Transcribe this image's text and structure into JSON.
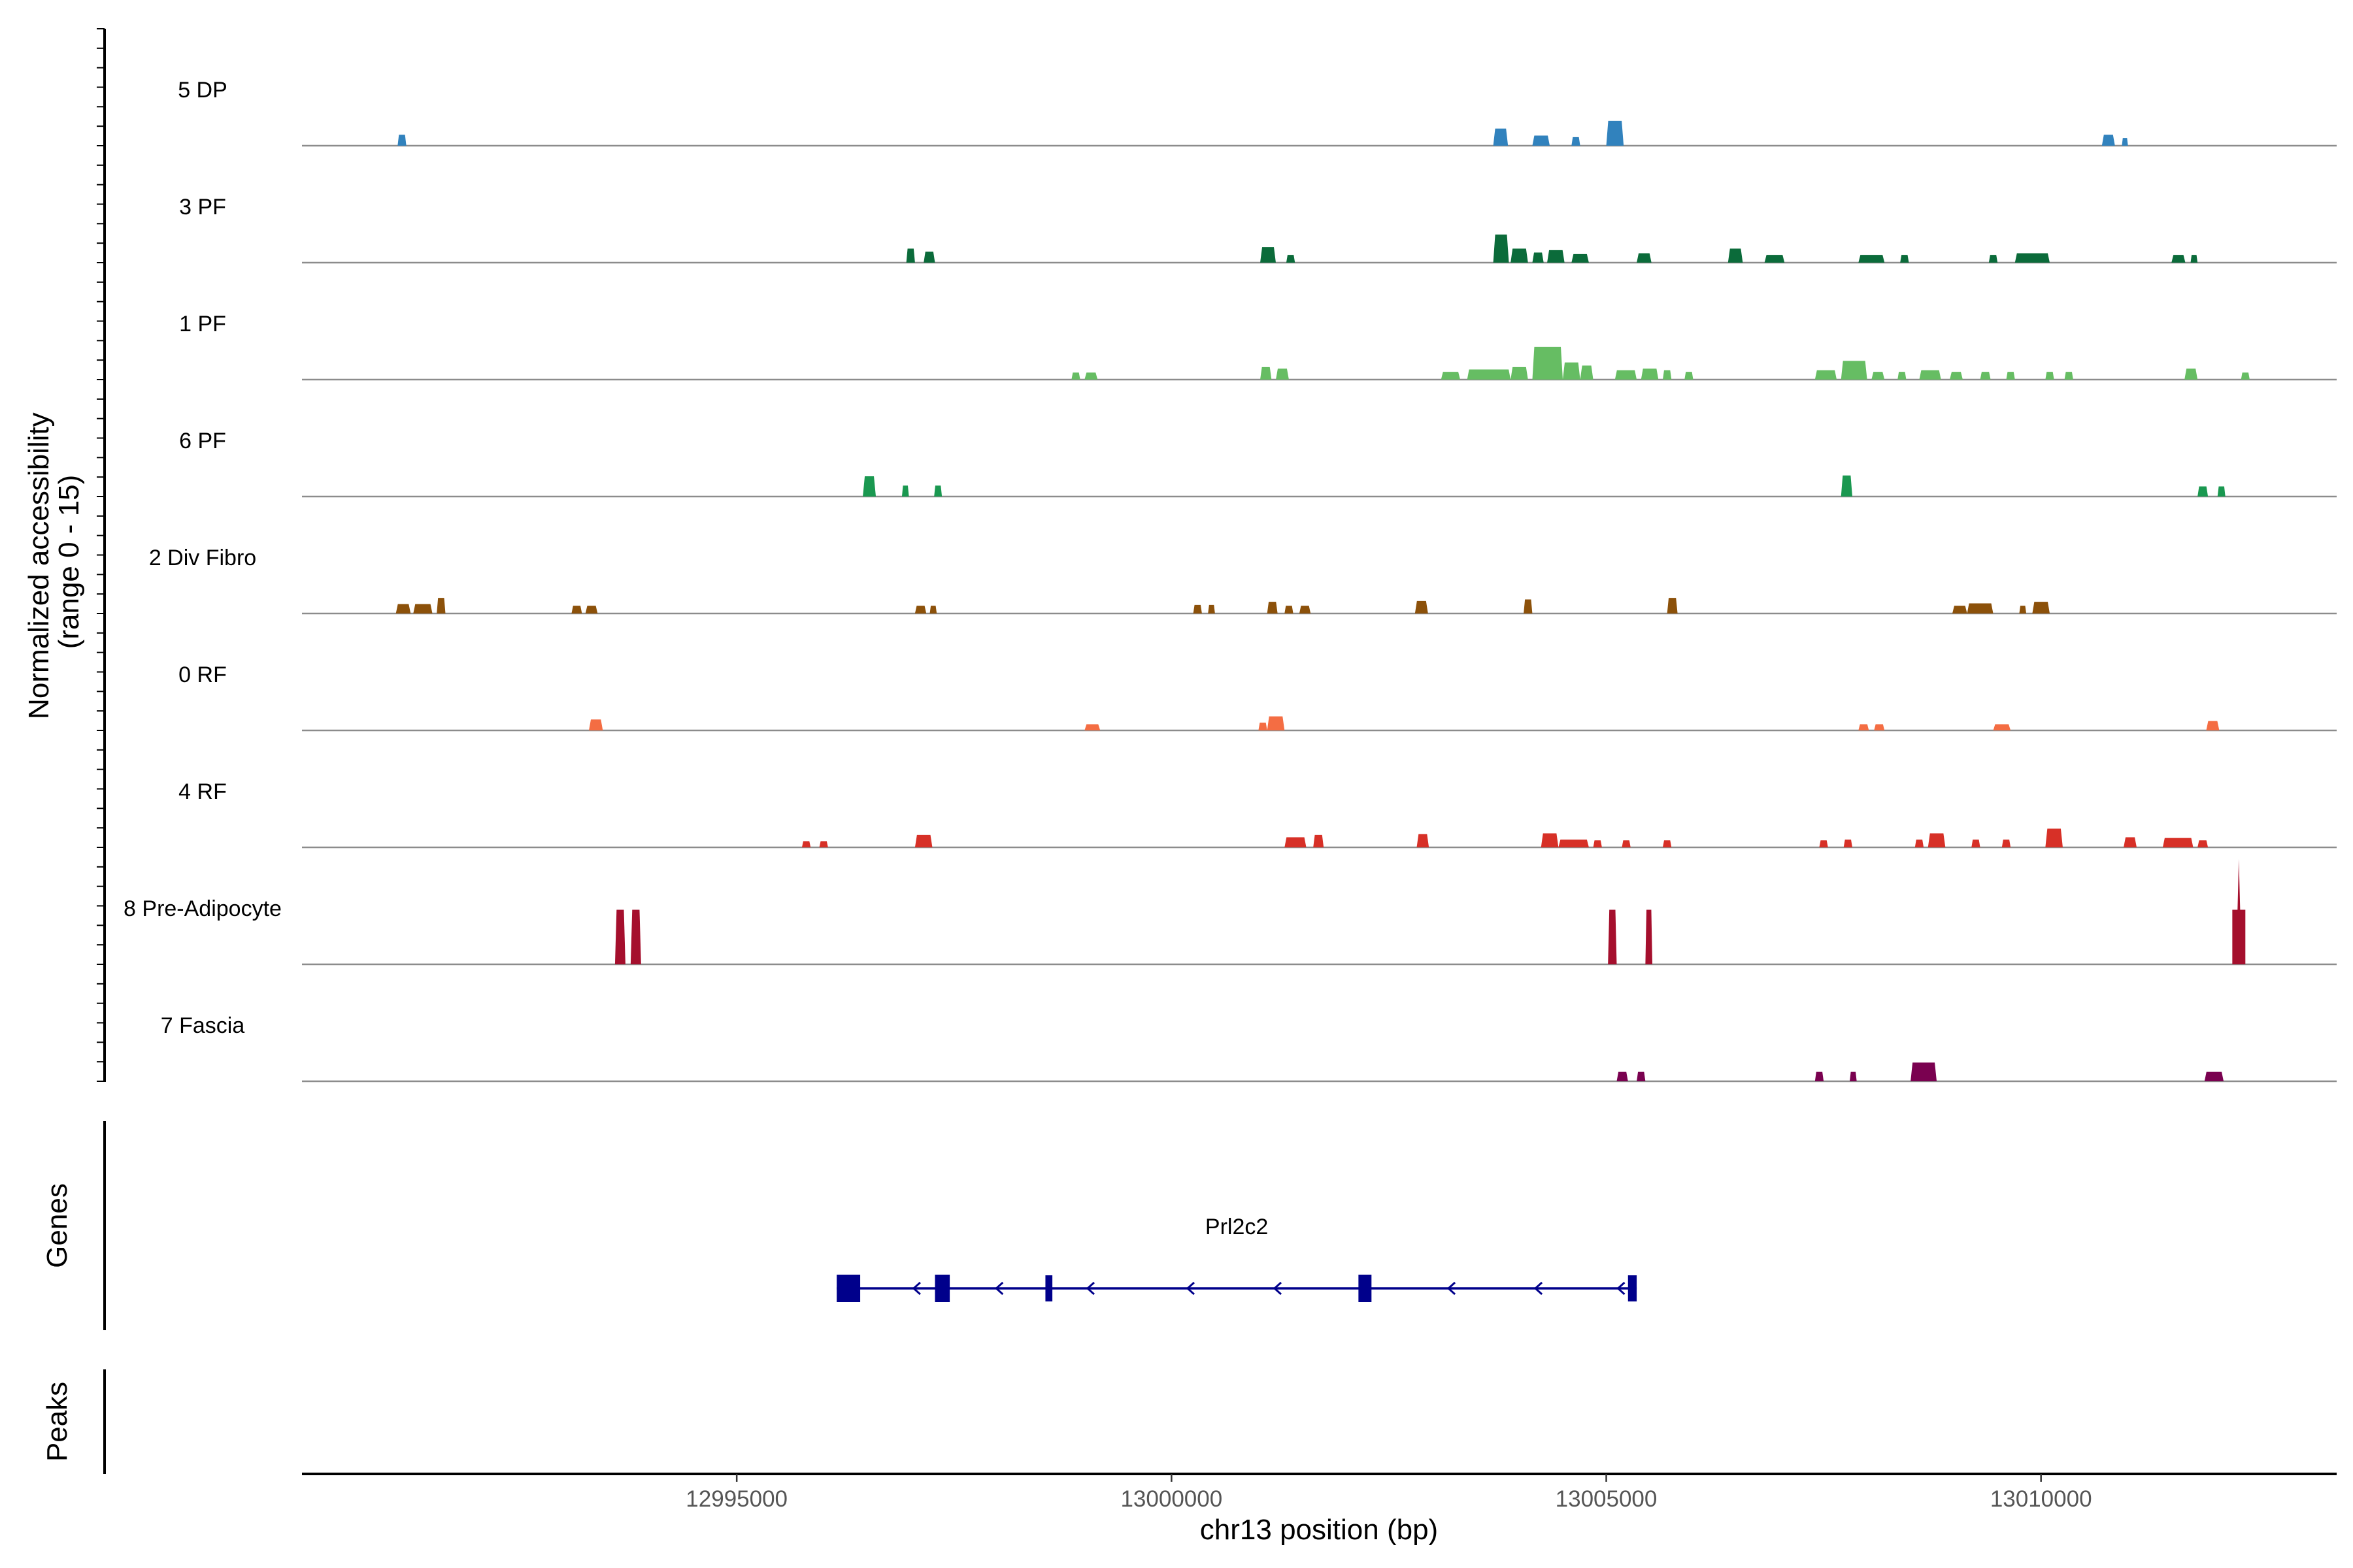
{
  "chart_data": {
    "type": "area",
    "subtype": "genome-coverage-tracks",
    "region": {
      "chromosome": "chr13",
      "start": 12990000,
      "end": 13013400
    },
    "ylabel_line1": "Normalized accessibility",
    "ylabel_line2": "(range 0 - 15)",
    "xlabel": "chr13 position (bp)",
    "xticks": [
      12995000,
      13000000,
      13005000,
      13010000
    ],
    "xtick_labels": [
      "12995000",
      "13000000",
      "13005000",
      "13010000"
    ],
    "y_range": [
      0,
      15
    ],
    "tracks": [
      {
        "name": "5 DP",
        "color": "#3182bd",
        "peaks": [
          {
            "start": 12991100,
            "end": 12991200,
            "height": 1.4
          },
          {
            "start": 13003700,
            "end": 13003870,
            "height": 2.2
          },
          {
            "start": 13004150,
            "end": 13004350,
            "height": 1.3
          },
          {
            "start": 13004600,
            "end": 13004700,
            "height": 1.1
          },
          {
            "start": 13005000,
            "end": 13005200,
            "height": 3.2
          },
          {
            "start": 13010700,
            "end": 13010850,
            "height": 1.4
          },
          {
            "start": 13010930,
            "end": 13011000,
            "height": 1.0
          }
        ]
      },
      {
        "name": "3 PF",
        "color": "#0b6b3a",
        "peaks": [
          {
            "start": 12996950,
            "end": 12997050,
            "height": 1.8
          },
          {
            "start": 12997150,
            "end": 12997280,
            "height": 1.4
          },
          {
            "start": 13001020,
            "end": 13001200,
            "height": 2.0
          },
          {
            "start": 13001320,
            "end": 13001420,
            "height": 1.0
          },
          {
            "start": 13003700,
            "end": 13003880,
            "height": 3.6
          },
          {
            "start": 13003900,
            "end": 13004100,
            "height": 1.8
          },
          {
            "start": 13004150,
            "end": 13004280,
            "height": 1.3
          },
          {
            "start": 13004320,
            "end": 13004520,
            "height": 1.6
          },
          {
            "start": 13004600,
            "end": 13004800,
            "height": 1.1
          },
          {
            "start": 13005350,
            "end": 13005520,
            "height": 1.2
          },
          {
            "start": 13006400,
            "end": 13006570,
            "height": 1.8
          },
          {
            "start": 13006820,
            "end": 13007050,
            "height": 1.0
          },
          {
            "start": 13007900,
            "end": 13008200,
            "height": 1.0
          },
          {
            "start": 13008380,
            "end": 13008480,
            "height": 1.0
          },
          {
            "start": 13009400,
            "end": 13009500,
            "height": 1.0
          },
          {
            "start": 13009700,
            "end": 13010100,
            "height": 1.2
          },
          {
            "start": 13011500,
            "end": 13011660,
            "height": 1.0
          },
          {
            "start": 13011720,
            "end": 13011800,
            "height": 1.0
          }
        ]
      },
      {
        "name": "1 PF",
        "color": "#66bd63",
        "peaks": [
          {
            "start": 12998850,
            "end": 12998950,
            "height": 0.9
          },
          {
            "start": 12999000,
            "end": 12999150,
            "height": 0.9
          },
          {
            "start": 13001020,
            "end": 13001150,
            "height": 1.6
          },
          {
            "start": 13001200,
            "end": 13001350,
            "height": 1.4
          },
          {
            "start": 13003100,
            "end": 13003320,
            "height": 1.0
          },
          {
            "start": 13003400,
            "end": 13003900,
            "height": 1.3
          },
          {
            "start": 13003900,
            "end": 13004100,
            "height": 1.6
          },
          {
            "start": 13004150,
            "end": 13004500,
            "height": 4.2
          },
          {
            "start": 13004500,
            "end": 13004700,
            "height": 2.2
          },
          {
            "start": 13004700,
            "end": 13004850,
            "height": 1.8
          },
          {
            "start": 13005100,
            "end": 13005350,
            "height": 1.2
          },
          {
            "start": 13005400,
            "end": 13005600,
            "height": 1.4
          },
          {
            "start": 13005650,
            "end": 13005750,
            "height": 1.2
          },
          {
            "start": 13005900,
            "end": 13006000,
            "height": 1.0
          },
          {
            "start": 13007400,
            "end": 13007650,
            "height": 1.2
          },
          {
            "start": 13007700,
            "end": 13008000,
            "height": 2.4
          },
          {
            "start": 13008050,
            "end": 13008200,
            "height": 1.0
          },
          {
            "start": 13008350,
            "end": 13008450,
            "height": 1.0
          },
          {
            "start": 13008600,
            "end": 13008850,
            "height": 1.2
          },
          {
            "start": 13008950,
            "end": 13009100,
            "height": 1.0
          },
          {
            "start": 13009300,
            "end": 13009420,
            "height": 1.0
          },
          {
            "start": 13009600,
            "end": 13009700,
            "height": 1.0
          },
          {
            "start": 13010050,
            "end": 13010150,
            "height": 1.0
          },
          {
            "start": 13010270,
            "end": 13010370,
            "height": 1.0
          },
          {
            "start": 13011650,
            "end": 13011800,
            "height": 1.4
          },
          {
            "start": 13012300,
            "end": 13012400,
            "height": 0.9
          }
        ]
      },
      {
        "name": "6 PF",
        "color": "#1a9850",
        "peaks": [
          {
            "start": 12996450,
            "end": 12996600,
            "height": 2.6
          },
          {
            "start": 12996900,
            "end": 12996980,
            "height": 1.4
          },
          {
            "start": 12997270,
            "end": 12997360,
            "height": 1.4
          },
          {
            "start": 13007700,
            "end": 13007830,
            "height": 2.7
          },
          {
            "start": 13011800,
            "end": 13011920,
            "height": 1.3
          },
          {
            "start": 13012030,
            "end": 13012120,
            "height": 1.3
          }
        ]
      },
      {
        "name": "2 Div Fibro",
        "color": "#8c510a",
        "peaks": [
          {
            "start": 12991080,
            "end": 12991250,
            "height": 1.2
          },
          {
            "start": 12991280,
            "end": 12991500,
            "height": 1.2
          },
          {
            "start": 12991550,
            "end": 12991650,
            "height": 2.0
          },
          {
            "start": 12993100,
            "end": 12993220,
            "height": 1.0
          },
          {
            "start": 12993260,
            "end": 12993400,
            "height": 1.0
          },
          {
            "start": 12997050,
            "end": 12997180,
            "height": 1.0
          },
          {
            "start": 12997220,
            "end": 12997300,
            "height": 1.0
          },
          {
            "start": 13000250,
            "end": 13000350,
            "height": 1.1
          },
          {
            "start": 13000420,
            "end": 13000500,
            "height": 1.1
          },
          {
            "start": 13001100,
            "end": 13001220,
            "height": 1.5
          },
          {
            "start": 13001300,
            "end": 13001400,
            "height": 1.0
          },
          {
            "start": 13001470,
            "end": 13001600,
            "height": 1.0
          },
          {
            "start": 13002800,
            "end": 13002950,
            "height": 1.6
          },
          {
            "start": 13004050,
            "end": 13004150,
            "height": 1.8
          },
          {
            "start": 13005700,
            "end": 13005820,
            "height": 2.0
          },
          {
            "start": 13008980,
            "end": 13009150,
            "height": 1.0
          },
          {
            "start": 13009150,
            "end": 13009450,
            "height": 1.3
          },
          {
            "start": 13009750,
            "end": 13009830,
            "height": 1.0
          },
          {
            "start": 13009900,
            "end": 13010100,
            "height": 1.5
          }
        ]
      },
      {
        "name": "0 RF",
        "color": "#f46d43",
        "peaks": [
          {
            "start": 12993300,
            "end": 12993460,
            "height": 1.4
          },
          {
            "start": 12999000,
            "end": 12999180,
            "height": 0.8
          },
          {
            "start": 13001000,
            "end": 13001100,
            "height": 1.0
          },
          {
            "start": 13001100,
            "end": 13001300,
            "height": 1.8
          },
          {
            "start": 13007900,
            "end": 13008020,
            "height": 0.8
          },
          {
            "start": 13008080,
            "end": 13008200,
            "height": 0.8
          },
          {
            "start": 13009450,
            "end": 13009650,
            "height": 0.8
          },
          {
            "start": 13011900,
            "end": 13012050,
            "height": 1.2
          }
        ]
      },
      {
        "name": "4 RF",
        "color": "#d73027",
        "peaks": [
          {
            "start": 12995750,
            "end": 12995850,
            "height": 0.8
          },
          {
            "start": 12995950,
            "end": 12996050,
            "height": 0.8
          },
          {
            "start": 12997050,
            "end": 12997250,
            "height": 1.6
          },
          {
            "start": 13001300,
            "end": 13001550,
            "height": 1.3
          },
          {
            "start": 13001630,
            "end": 13001750,
            "height": 1.6
          },
          {
            "start": 13002820,
            "end": 13002960,
            "height": 1.7
          },
          {
            "start": 13004250,
            "end": 13004450,
            "height": 1.8
          },
          {
            "start": 13004450,
            "end": 13004800,
            "height": 1.0
          },
          {
            "start": 13004850,
            "end": 13004950,
            "height": 0.9
          },
          {
            "start": 13005180,
            "end": 13005280,
            "height": 0.9
          },
          {
            "start": 13005650,
            "end": 13005750,
            "height": 0.9
          },
          {
            "start": 13007450,
            "end": 13007550,
            "height": 0.9
          },
          {
            "start": 13007730,
            "end": 13007830,
            "height": 1.0
          },
          {
            "start": 13008550,
            "end": 13008650,
            "height": 1.0
          },
          {
            "start": 13008700,
            "end": 13008900,
            "height": 1.8
          },
          {
            "start": 13009200,
            "end": 13009300,
            "height": 1.0
          },
          {
            "start": 13009550,
            "end": 13009650,
            "height": 1.0
          },
          {
            "start": 13010050,
            "end": 13010250,
            "height": 2.4
          },
          {
            "start": 13010950,
            "end": 13011100,
            "height": 1.3
          },
          {
            "start": 13011400,
            "end": 13011750,
            "height": 1.2
          },
          {
            "start": 13011800,
            "end": 13011920,
            "height": 0.9
          }
        ]
      },
      {
        "name": "8 Pre-Adipocyte",
        "color": "#a50f2d",
        "peaks": [
          {
            "start": 12993600,
            "end": 12993720,
            "height": 7.0
          },
          {
            "start": 12993780,
            "end": 12993900,
            "height": 7.0
          },
          {
            "start": 13005020,
            "end": 13005120,
            "height": 7.0
          },
          {
            "start": 13005450,
            "end": 13005530,
            "height": 7.0
          },
          {
            "start": 13012200,
            "end": 13012350,
            "height": 13.5
          }
        ]
      },
      {
        "name": "7 Fascia",
        "color": "#7a0150",
        "peaks": [
          {
            "start": 13005120,
            "end": 13005250,
            "height": 1.2
          },
          {
            "start": 13005350,
            "end": 13005450,
            "height": 1.2
          },
          {
            "start": 13007400,
            "end": 13007500,
            "height": 1.2
          },
          {
            "start": 13007800,
            "end": 13007880,
            "height": 1.2
          },
          {
            "start": 13008500,
            "end": 13008800,
            "height": 2.4
          },
          {
            "start": 13011880,
            "end": 13012100,
            "height": 1.2
          }
        ]
      }
    ],
    "genes_label": "Genes",
    "peaks_label": "Peaks",
    "gene": {
      "name": "Prl2c2",
      "strand": "-",
      "color": "#00008b",
      "start": 12996150,
      "end": 13005350,
      "exons": [
        {
          "start": 12996150,
          "end": 12996420,
          "type": "utr"
        },
        {
          "start": 12997280,
          "end": 12997450,
          "type": "cds"
        },
        {
          "start": 12998550,
          "end": 12998630,
          "type": "cds"
        },
        {
          "start": 13002150,
          "end": 13002300,
          "type": "cds"
        },
        {
          "start": 13005250,
          "end": 13005350,
          "type": "utr"
        }
      ],
      "arrow_positions": [
        12997050,
        12998000,
        12999050,
        13000200,
        13001200,
        13003200,
        13004200,
        13005150
      ]
    }
  }
}
